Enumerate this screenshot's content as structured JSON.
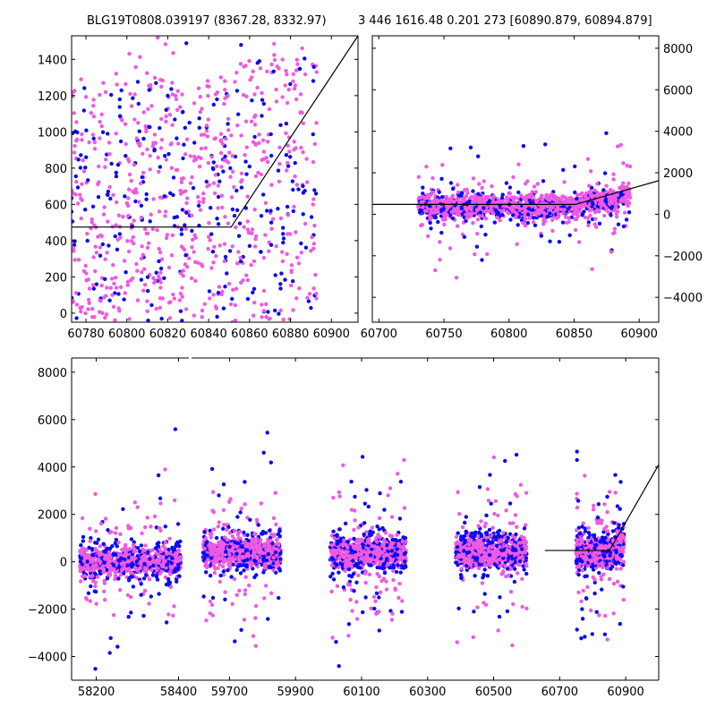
{
  "titles": {
    "left": "BLG19T0808.039197 (8367.28, 8332.97)",
    "right": "3 446 1616.48 0.201 273 [60890.879, 60894.879]"
  },
  "colors": {
    "series_a": "#0b0bf2",
    "series_b": "#ee5ae0",
    "model_line": "#000000",
    "axes": "#000000"
  },
  "chart_data": [
    {
      "id": "zoom-left",
      "type": "scatter",
      "xlim": [
        60773,
        60913
      ],
      "ylim": [
        -50,
        1530
      ],
      "xticks": [
        60780,
        60800,
        60820,
        60840,
        60860,
        60880,
        60900
      ],
      "yticks": [
        0,
        200,
        400,
        600,
        800,
        1000,
        1200,
        1400
      ],
      "ytick_side": "left",
      "series": [
        {
          "color_key": "series_a",
          "x_range": [
            60773,
            60893
          ],
          "y_range": [
            -50,
            1530
          ],
          "count": 260
        },
        {
          "color_key": "series_b",
          "x_range": [
            60773,
            60893
          ],
          "y_range": [
            -50,
            1530
          ],
          "count": 620
        }
      ],
      "model_line": [
        [
          60773,
          475
        ],
        [
          60851,
          475
        ],
        [
          60913,
          1530
        ]
      ]
    },
    {
      "id": "zoom-right",
      "type": "scatter",
      "xlim": [
        60695,
        60915
      ],
      "ylim": [
        -5200,
        8600
      ],
      "xticks": [
        60700,
        60750,
        60800,
        60850,
        60900
      ],
      "yticks": [
        -4000,
        -2000,
        0,
        2000,
        4000,
        6000,
        8000
      ],
      "ytick_side": "right",
      "series": [
        {
          "color_key": "series_a",
          "x_range": [
            60730,
            60893
          ],
          "y_center": 300,
          "y_spread": 320,
          "count": 500
        },
        {
          "color_key": "series_b",
          "x_range": [
            60730,
            60893
          ],
          "y_center": 400,
          "y_spread": 260,
          "count": 1200
        }
      ],
      "model_line": [
        [
          60695,
          475
        ],
        [
          60851,
          475
        ],
        [
          60915,
          1620
        ]
      ]
    },
    {
      "id": "full-lightcurve",
      "type": "scatter",
      "segments": [
        {
          "xlim": [
            58140,
            58425
          ],
          "xticks": [
            58200,
            58400
          ]
        },
        {
          "xlim": [
            59585,
            61000
          ],
          "xticks": [
            59700,
            59900,
            60100,
            60300,
            60500,
            60700,
            60900
          ]
        }
      ],
      "ylim": [
        -5000,
        8600
      ],
      "yticks": [
        -4000,
        -2000,
        0,
        2000,
        4000,
        6000,
        8000
      ],
      "ytick_side": "left",
      "seasons": [
        {
          "x_range": [
            58160,
            58405
          ],
          "center": 0
        },
        {
          "x_range": [
            59620,
            59855
          ],
          "center": 400
        },
        {
          "x_range": [
            60005,
            60235
          ],
          "center": 350
        },
        {
          "x_range": [
            60385,
            60600
          ],
          "center": 400
        },
        {
          "x_range": [
            60750,
            60895
          ],
          "center": 400
        }
      ],
      "model_line": [
        [
          60655,
          475
        ],
        [
          60851,
          475
        ],
        [
          61000,
          4100
        ]
      ]
    }
  ]
}
